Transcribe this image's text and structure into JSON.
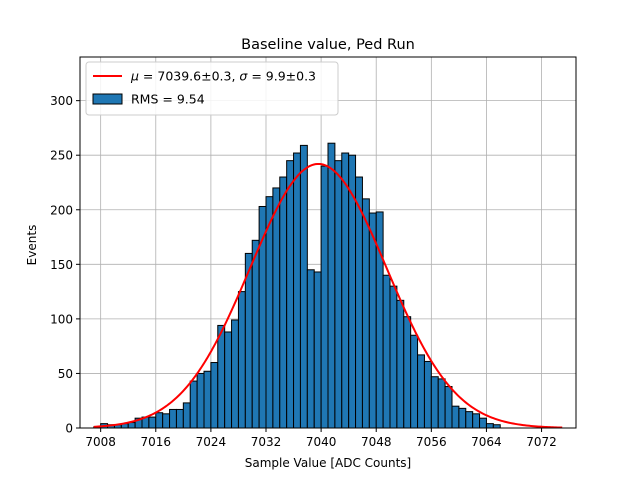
{
  "chart_data": {
    "type": "bar",
    "title": "Baseline value, Ped Run",
    "xlabel": "Sample Value [ADC Counts]",
    "ylabel": "Events",
    "xlim": [
      7005,
      7077
    ],
    "ylim": [
      0,
      340
    ],
    "xticks": [
      7008,
      7016,
      7024,
      7032,
      7040,
      7048,
      7056,
      7064,
      7072
    ],
    "yticks": [
      0,
      50,
      100,
      150,
      200,
      250,
      300
    ],
    "grid": true,
    "bin_start": 7007,
    "bin_width": 1,
    "values": [
      1,
      4,
      3,
      3,
      4,
      5,
      9,
      10,
      10,
      14,
      13,
      17,
      17,
      23,
      43,
      50,
      52,
      60,
      94,
      88,
      99,
      125,
      160,
      172,
      203,
      212,
      220,
      230,
      245,
      252,
      259,
      145,
      143,
      240,
      261,
      245,
      252,
      250,
      230,
      210,
      197,
      198,
      140,
      130,
      117,
      102,
      85,
      67,
      61,
      47,
      45,
      38,
      20,
      18,
      15,
      13,
      9,
      4,
      3
    ],
    "fit": {
      "type": "gaussian",
      "mu": 7039.6,
      "sigma": 9.9,
      "peak": 242,
      "x_range": [
        7007,
        7075
      ],
      "color": "#ff0000"
    },
    "colors": {
      "bar_fill": "#1f77b4",
      "bar_edge": "#000000",
      "grid": "#b0b0b0"
    },
    "legend": {
      "position": "top-left",
      "fit_label_mu": "μ",
      "fit_label_mu_value": " = 7039.6±0.3, ",
      "fit_label_sigma": "σ",
      "fit_label_sigma_value": " = 9.9±0.3",
      "hist_label": "RMS = 9.54"
    }
  }
}
